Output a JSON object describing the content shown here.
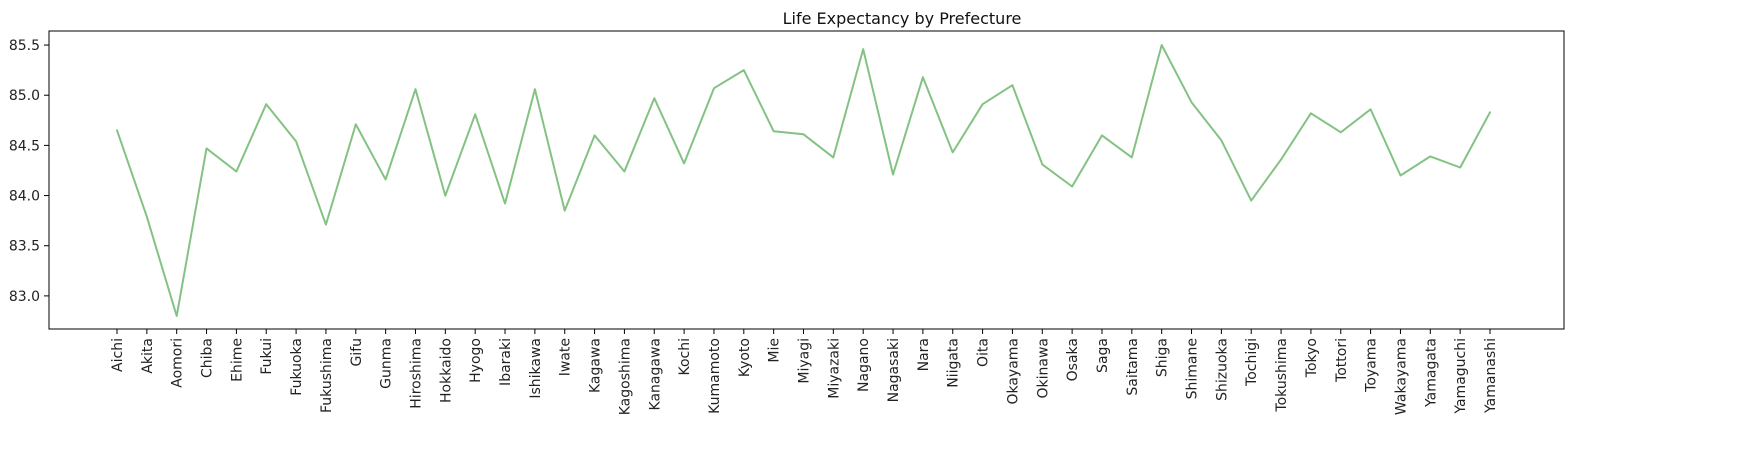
{
  "chart_data": {
    "type": "line",
    "title": "Life Expectancy by Prefecture",
    "xlabel": "",
    "ylabel": "",
    "ylim": [
      82.67,
      85.64
    ],
    "yticks": [
      83.0,
      83.5,
      84.0,
      84.5,
      85.0,
      85.5
    ],
    "ytick_labels": [
      "83.0",
      "83.5",
      "84.0",
      "84.5",
      "85.0",
      "85.5"
    ],
    "grid": false,
    "legend": "none",
    "line_color": "#84c284",
    "categories": [
      "Aichi",
      "Akita",
      "Aomori",
      "Chiba",
      "Ehime",
      "Fukui",
      "Fukuoka",
      "Fukushima",
      "Gifu",
      "Gunma",
      "Hiroshima",
      "Hokkaido",
      "Hyogo",
      "Ibaraki",
      "Ishikawa",
      "Iwate",
      "Kagawa",
      "Kagoshima",
      "Kanagawa",
      "Kochi",
      "Kumamoto",
      "Kyoto",
      "Mie",
      "Miyagi",
      "Miyazaki",
      "Nagano",
      "Nagasaki",
      "Nara",
      "Niigata",
      "Oita",
      "Okayama",
      "Okinawa",
      "Osaka",
      "Saga",
      "Saitama",
      "Shiga",
      "Shimane",
      "Shizuoka",
      "Tochigi",
      "Tokushima",
      "Tokyo",
      "Tottori",
      "Toyama",
      "Wakayama",
      "Yamagata",
      "Yamaguchi",
      "Yamanashi"
    ],
    "values": [
      84.65,
      83.79,
      82.8,
      84.47,
      84.24,
      84.91,
      84.54,
      83.71,
      84.71,
      84.16,
      85.06,
      84.0,
      84.81,
      83.92,
      85.06,
      83.85,
      84.6,
      84.24,
      84.97,
      84.32,
      85.07,
      85.25,
      84.64,
      84.61,
      84.38,
      85.46,
      84.21,
      85.18,
      84.43,
      84.91,
      85.1,
      84.31,
      84.09,
      84.6,
      84.38,
      85.5,
      84.93,
      84.55,
      83.95,
      84.36,
      84.82,
      84.63,
      84.86,
      84.2,
      84.39,
      84.28,
      84.83
    ]
  }
}
